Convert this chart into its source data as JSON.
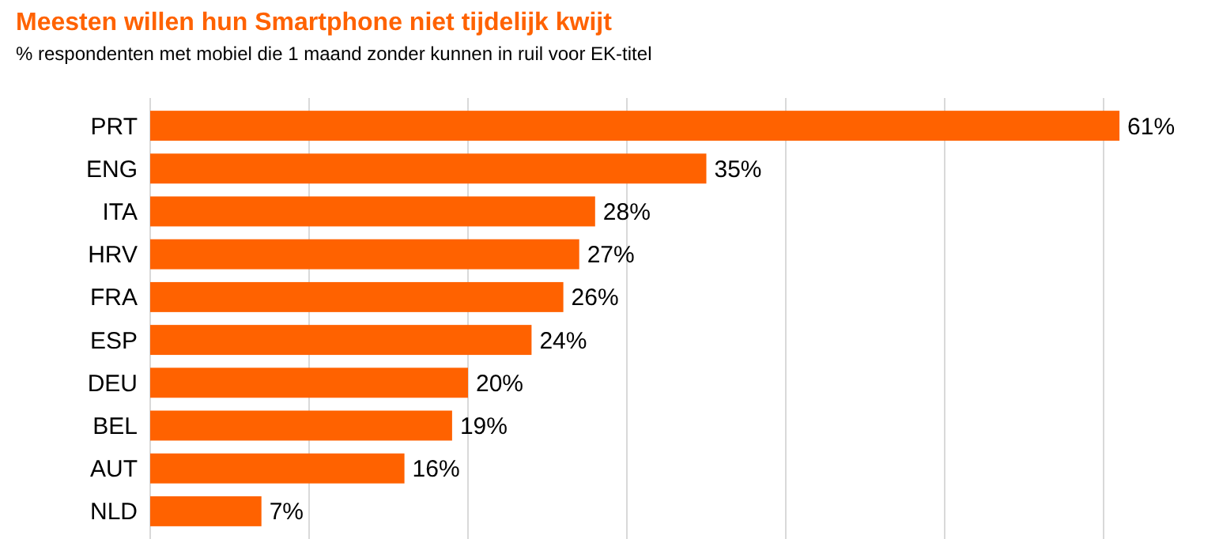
{
  "chart_data": {
    "type": "bar",
    "orientation": "horizontal",
    "title": "Meesten willen hun Smartphone niet tijdelijk kwijt",
    "subtitle": "% respondenten met mobiel die 1 maand zonder kunnen in ruil voor EK-titel",
    "categories": [
      "PRT",
      "ENG",
      "ITA",
      "HRV",
      "FRA",
      "ESP",
      "DEU",
      "BEL",
      "AUT",
      "NLD"
    ],
    "values": [
      61,
      35,
      28,
      27,
      26,
      24,
      20,
      19,
      16,
      7
    ],
    "value_labels": [
      "61%",
      "35%",
      "28%",
      "27%",
      "26%",
      "24%",
      "20%",
      "19%",
      "16%",
      "7%"
    ],
    "color": "#ff6200",
    "xticks": [
      {
        "value": 0,
        "label": null
      },
      {
        "value": 10,
        "label": null
      },
      {
        "value": 20,
        "label": null
      },
      {
        "value": 30,
        "label": null
      },
      {
        "value": 40,
        "label": null
      },
      {
        "value": 50,
        "label": null
      },
      {
        "value": 60,
        "label": null
      }
    ],
    "grid": "x",
    "tick_labels": "y"
  }
}
